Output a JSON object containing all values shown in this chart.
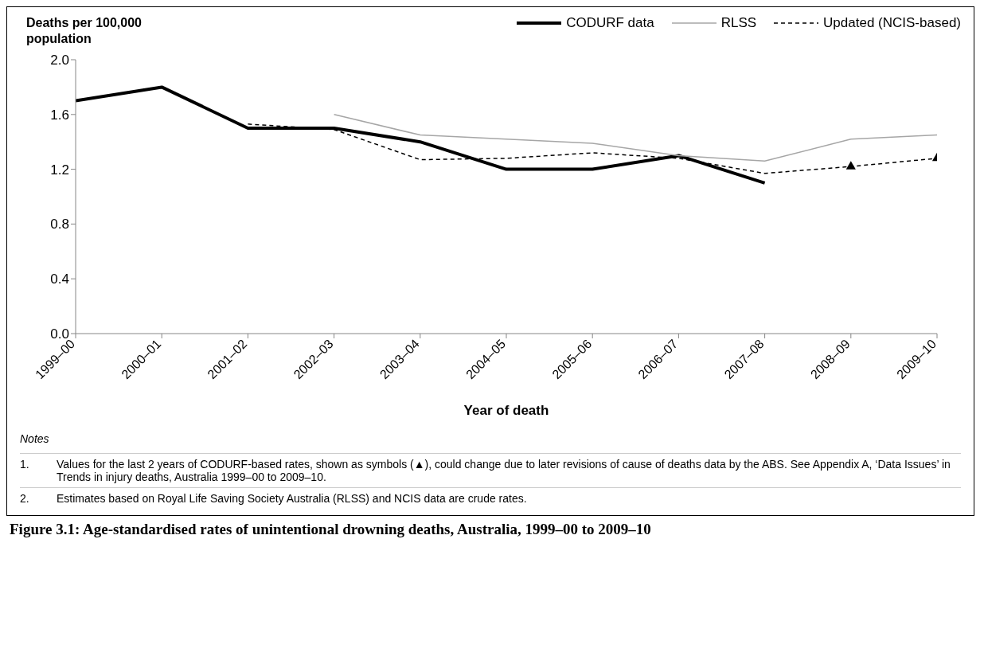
{
  "chart_data": {
    "type": "line",
    "title": "Figure 3.1: Age-standardised rates of unintentional drowning deaths, Australia, 1999–00 to 2009–10",
    "xlabel": "Year of death",
    "ylabel": "Deaths per 100,000 population",
    "categories": [
      "1999–00",
      "2000–01",
      "2001–02",
      "2002–03",
      "2003–04",
      "2004–05",
      "2005–06",
      "2006–07",
      "2007–08",
      "2008–09",
      "2009–10"
    ],
    "series": [
      {
        "name": "CODURF data",
        "color": "#000000",
        "line_style": "solid",
        "values": [
          1.7,
          1.8,
          1.5,
          1.5,
          1.4,
          1.2,
          1.2,
          1.3,
          1.1,
          null,
          null
        ]
      },
      {
        "name": "RLSS",
        "color": "#a6a6a6",
        "line_style": "solid",
        "values": [
          null,
          null,
          null,
          1.6,
          1.45,
          1.42,
          1.39,
          1.3,
          1.26,
          1.42,
          1.45
        ]
      },
      {
        "name": "Updated (NCIS-based)",
        "color": "#000000",
        "line_style": "dashed",
        "values": [
          null,
          null,
          1.53,
          1.49,
          1.27,
          1.28,
          1.32,
          1.28,
          1.17,
          1.22,
          1.28
        ]
      },
      {
        "type": "scatter",
        "color": "#000000",
        "marker": "triangle",
        "x": [
          "2008–09",
          "2009–10"
        ],
        "values": [
          1.22,
          1.28
        ]
      }
    ],
    "ylim": [
      0,
      2
    ],
    "yticks": [
      {
        "value": 0,
        "label": "0.0"
      },
      {
        "value": 0.4,
        "label": "0.4"
      },
      {
        "value": 0.8,
        "label": "0.8"
      },
      {
        "value": 1.2,
        "label": "1.2"
      },
      {
        "value": 1.6,
        "label": "1.6"
      },
      {
        "value": 2,
        "label": "2.0"
      }
    ],
    "grid": false,
    "legend": "top right",
    "marker": "none",
    "annotations": [
      "Notes",
      "1.\tValues for the last 2 years of CODURF-based rates, shown as symbols (▲), could change due to later revisions of cause of deaths data by the ABS. See Appendix A, ‘Data Issues’ in Trends in injury deaths, Australia 1999–00 to 2009–10.",
      "2.\tEstimates based on Royal Life Saving Society Australia (RLSS) and NCIS data are crude rates."
    ]
  }
}
